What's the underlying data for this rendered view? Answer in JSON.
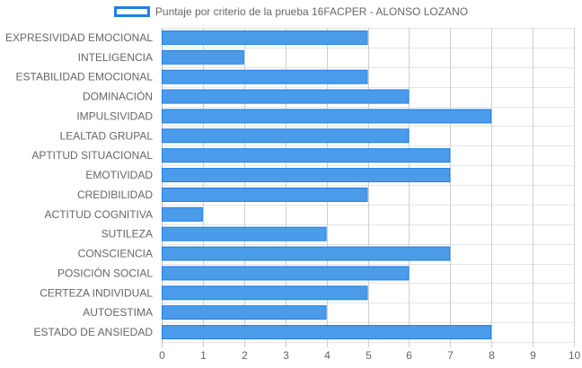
{
  "chart_data": {
    "type": "bar",
    "orientation": "horizontal",
    "title": "",
    "legend_position": "top",
    "grid": true,
    "xlim": [
      0,
      10
    ],
    "x_ticks": [
      "0",
      "1",
      "2",
      "3",
      "4",
      "5",
      "6",
      "7",
      "8",
      "9",
      "10"
    ],
    "categories": [
      "EXPRESIVIDAD EMOCIONAL",
      "INTELIGENCIA",
      "ESTABILIDAD EMOCIONAL",
      "DOMINACIÓN",
      "IMPULSIVIDAD",
      "LEALTAD GRUPAL",
      "APTITUD SITUACIONAL",
      "EMOTIVIDAD",
      "CREDIBILIDAD",
      "ACTITUD COGNITIVA",
      "SUTILEZA",
      "CONSCIENCIA",
      "POSICIÓN SOCIAL",
      "CERTEZA INDIVIDUAL",
      "AUTOESTIMA",
      "ESTADO DE ANSIEDAD"
    ],
    "series": [
      {
        "name": "Puntaje por criterio de la prueba 16FACPER - ALONSO LOZANO",
        "color": "#4a9be9",
        "border_color": "#1f80e6",
        "values": [
          5,
          2,
          5,
          6,
          8,
          6,
          7,
          7,
          5,
          1,
          4,
          7,
          6,
          5,
          4,
          8
        ]
      }
    ]
  }
}
